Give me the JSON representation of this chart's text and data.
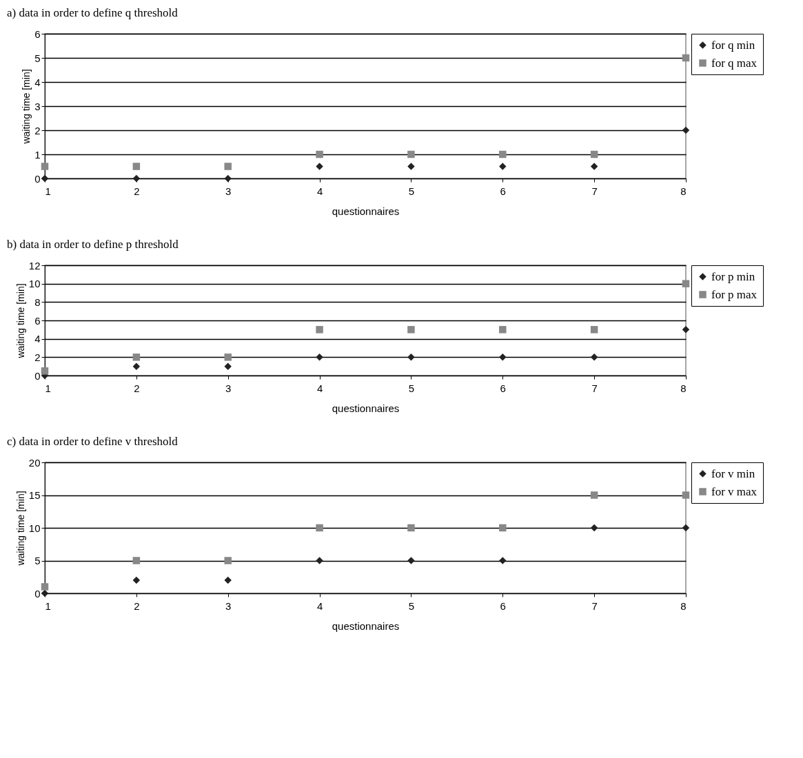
{
  "chart_data": [
    {
      "type": "scatter",
      "title": "a) data in order to define q threshold",
      "xlabel": "questionnaires",
      "ylabel": "waiting time [min]",
      "x": [
        1,
        2,
        3,
        4,
        5,
        6,
        7,
        8
      ],
      "xlim": [
        1,
        8
      ],
      "xticks": [
        1,
        2,
        3,
        4,
        5,
        6,
        7,
        8
      ],
      "ylim": [
        0,
        6
      ],
      "yticks": [
        0,
        1,
        2,
        3,
        4,
        5,
        6
      ],
      "grid": "y",
      "legend": "right",
      "series": [
        {
          "name": "for q min",
          "color": "#222222",
          "marker": "diamond",
          "values": [
            0,
            0,
            0,
            0.5,
            0.5,
            0.5,
            0.5,
            2
          ]
        },
        {
          "name": "for q max",
          "color": "#888888",
          "marker": "square",
          "values": [
            0.5,
            0.5,
            0.5,
            1,
            1,
            1,
            1,
            5
          ]
        }
      ]
    },
    {
      "type": "scatter",
      "title": "b) data in order to define p threshold",
      "xlabel": "questionnaires",
      "ylabel": "waiting time [min]",
      "x": [
        1,
        2,
        3,
        4,
        5,
        6,
        7,
        8
      ],
      "xlim": [
        1,
        8
      ],
      "xticks": [
        1,
        2,
        3,
        4,
        5,
        6,
        7,
        8
      ],
      "ylim": [
        0,
        12
      ],
      "yticks": [
        0,
        2,
        4,
        6,
        8,
        10,
        12
      ],
      "grid": "y",
      "legend": "right",
      "series": [
        {
          "name": "for p min",
          "color": "#222222",
          "marker": "diamond",
          "values": [
            0,
            1,
            1,
            2,
            2,
            2,
            2,
            5
          ]
        },
        {
          "name": "for p max",
          "color": "#888888",
          "marker": "square",
          "values": [
            0.5,
            2,
            2,
            5,
            5,
            5,
            5,
            10
          ]
        }
      ]
    },
    {
      "type": "scatter",
      "title": "c) data in order to define v threshold",
      "xlabel": "questionnaires",
      "ylabel": "waiting time [min]",
      "x": [
        1,
        2,
        3,
        4,
        5,
        6,
        7,
        8
      ],
      "xlim": [
        1,
        8
      ],
      "xticks": [
        1,
        2,
        3,
        4,
        5,
        6,
        7,
        8
      ],
      "ylim": [
        0,
        20
      ],
      "yticks": [
        0,
        5,
        10,
        15,
        20
      ],
      "grid": "y",
      "legend": "right",
      "series": [
        {
          "name": "for v min",
          "color": "#222222",
          "marker": "diamond",
          "values": [
            0,
            2,
            2,
            5,
            5,
            5,
            10,
            10
          ]
        },
        {
          "name": "for v max",
          "color": "#888888",
          "marker": "square",
          "values": [
            1,
            5,
            5,
            10,
            10,
            10,
            15,
            15
          ]
        }
      ]
    }
  ]
}
